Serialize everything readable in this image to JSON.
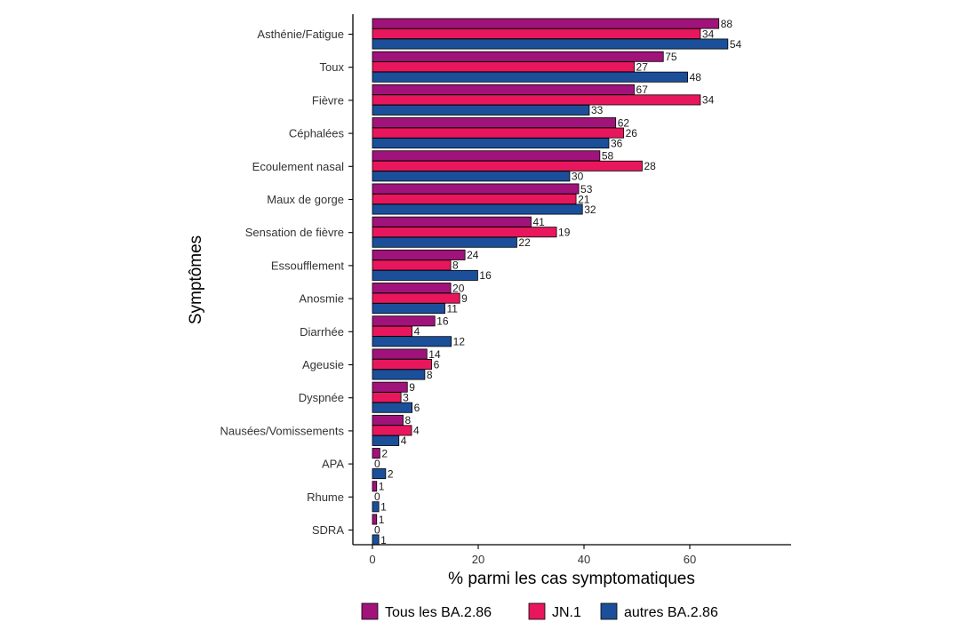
{
  "chart_data": {
    "type": "bar",
    "orientation": "horizontal",
    "categories": [
      "Asthénie/Fatigue",
      "Toux",
      "Fièvre",
      "Céphalées",
      "Ecoulement nasal",
      "Maux de gorge",
      "Sensation de fièvre",
      "Essoufflement",
      "Anosmie",
      "Diarrhée",
      "Ageusie",
      "Dyspnée",
      "Nausées/Vomissements",
      "APA",
      "Rhume",
      "SDRA"
    ],
    "series": [
      {
        "name": "Tous les BA.2.86",
        "color": "#a0137a",
        "values": [
          65.5,
          55.0,
          49.5,
          46.0,
          43.0,
          39.0,
          30.0,
          17.5,
          14.8,
          11.8,
          10.3,
          6.6,
          5.8,
          1.4,
          0.8,
          0.8
        ],
        "labels": [
          "88",
          "75",
          "67",
          "62",
          "58",
          "53",
          "41",
          "24",
          "20",
          "16",
          "14",
          "9",
          "8",
          "2",
          "1",
          "1"
        ]
      },
      {
        "name": "JN.1",
        "color": "#e8175d",
        "values": [
          62.0,
          49.5,
          62.0,
          47.5,
          51.0,
          38.5,
          34.8,
          14.8,
          16.5,
          7.5,
          11.2,
          5.4,
          7.4,
          0,
          0,
          0
        ],
        "labels": [
          "34",
          "27",
          "34",
          "26",
          "28",
          "21",
          "19",
          "8",
          "9",
          "4",
          "6",
          "3",
          "4",
          "0",
          "0",
          "0"
        ]
      },
      {
        "name": "autres BA.2.86",
        "color": "#1b4f9a",
        "values": [
          67.2,
          59.6,
          41.0,
          44.7,
          37.3,
          39.7,
          27.3,
          19.9,
          13.7,
          14.9,
          9.9,
          7.5,
          5.0,
          2.5,
          1.2,
          1.2
        ],
        "labels": [
          "54",
          "48",
          "33",
          "36",
          "30",
          "32",
          "22",
          "16",
          "11",
          "12",
          "8",
          "6",
          "4",
          "2",
          "1",
          "1"
        ]
      }
    ],
    "xticks": [
      "0",
      "20",
      "40",
      "60"
    ],
    "xlim": [
      0,
      80
    ],
    "xlabel": "% parmi les cas symptomatiques",
    "ylabel": "Symptômes",
    "grid": false,
    "legend_position": "bottom"
  }
}
